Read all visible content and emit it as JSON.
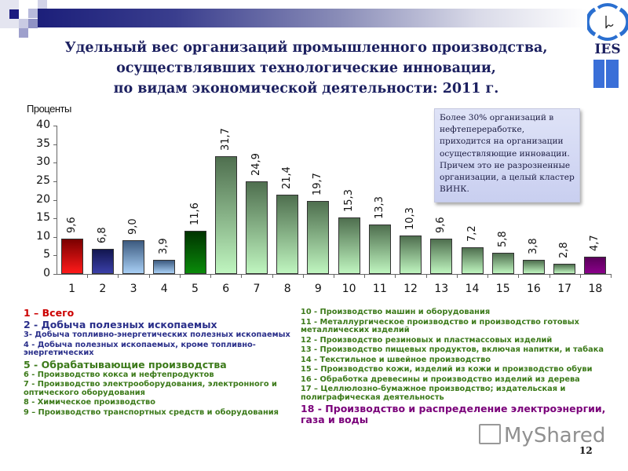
{
  "slide": {
    "title_lines": [
      "Удельный вес организаций промышленного производства,",
      "осуществлявших технологические инновации,",
      "по видам экономической деятельности: 2011 г."
    ],
    "logo_text": "IES",
    "page_number": "12",
    "watermark": "MyShared",
    "note": "Более 30% организаций в нефтепереработке, приходится на организации осуществляющие инновации. Причем это не разрозненные организации, а целый кластер ВИНК."
  },
  "colors": {
    "title": "#1c2060",
    "red": "#d40000",
    "navy": "#1e2270",
    "purple": "#7a007a",
    "legend_blue": "#2a2f8a",
    "legend_green": "#3c7a1a",
    "legend_red": "#cc0000"
  },
  "chart_data": {
    "type": "bar",
    "title": "Удельный вес организаций промышленного производства, осуществлявших технологические инновации, по видам экономической деятельности: 2011 г.",
    "xlabel": "",
    "ylabel": "Проценты",
    "ylim": [
      0,
      40
    ],
    "yticks": [
      "0",
      "5",
      "10",
      "15",
      "20",
      "25",
      "30",
      "35",
      "40"
    ],
    "grid": false,
    "legend_position": "below",
    "categories": [
      "1",
      "2",
      "3",
      "4",
      "5",
      "6",
      "7",
      "8",
      "9",
      "10",
      "11",
      "12",
      "13",
      "14",
      "15",
      "16",
      "17",
      "18"
    ],
    "values": [
      9.6,
      6.8,
      9.0,
      3.9,
      11.6,
      31.7,
      24.9,
      21.4,
      19.7,
      15.3,
      13.3,
      10.3,
      9.6,
      7.2,
      5.8,
      3.8,
      2.8,
      4.7
    ],
    "value_labels": [
      "9,6",
      "6,8",
      "9,0",
      "3,9",
      "11,6",
      "31,7",
      "24,9",
      "21,4",
      "19,7",
      "15,3",
      "13,3",
      "10,3",
      "9,6",
      "7,2",
      "5,8",
      "3,8",
      "2,8",
      "4,7"
    ],
    "bar_styles": [
      "red",
      "navy",
      "lightblue",
      "lightblue",
      "darkgreen",
      "green",
      "green",
      "green",
      "green",
      "green",
      "green",
      "green",
      "green",
      "green",
      "green",
      "green",
      "green",
      "purple"
    ]
  },
  "legend": {
    "left": [
      {
        "text": "1 – Всего",
        "size": "big",
        "color": "red"
      },
      {
        "text": "2 - Добыча полезных ископаемых",
        "size": "big",
        "color": "blue"
      },
      {
        "text": "3- Добыча топливно-энергетических полезных ископаемых",
        "size": "small",
        "color": "blue"
      },
      {
        "text": "4 - Добыча полезных ископаемых, кроме топливно-энергетических",
        "size": "small",
        "color": "blue"
      },
      {
        "text": "5 - Обрабатывающие производства",
        "size": "big",
        "color": "green"
      },
      {
        "text": "6 - Производство кокса и нефтепродуктов",
        "size": "small",
        "color": "green"
      },
      {
        "text": "7 - Производство электрооборудования, электронного и оптического оборудования",
        "size": "small",
        "color": "green"
      },
      {
        "text": "8 - Химическое производство",
        "size": "small",
        "color": "green"
      },
      {
        "text": "9 – Производство транспортных средств и оборудования",
        "size": "small",
        "color": "green"
      }
    ],
    "right": [
      {
        "text": "10 - Производство машин и оборудования",
        "size": "small",
        "color": "green"
      },
      {
        "text": "11 - Металлургическое производство и производство готовых металлических изделий",
        "size": "small",
        "color": "green"
      },
      {
        "text": "12 - Производство резиновых и пластмассовых изделий",
        "size": "small",
        "color": "green"
      },
      {
        "text": "13 - Производство пищевых продуктов, включая напитки, и табака",
        "size": "small",
        "color": "green"
      },
      {
        "text": "14 - Текстильное и швейное производство",
        "size": "small",
        "color": "green"
      },
      {
        "text": "15 – Производство кожи, изделий из кожи и производство обуви",
        "size": "small",
        "color": "green"
      },
      {
        "text": "16 - Обработка древесины и производство изделий из дерева",
        "size": "small",
        "color": "green"
      },
      {
        "text": "17 – Целлюлозно-бумажное производство; издательская и полиграфическая деятельность",
        "size": "small",
        "color": "green"
      },
      {
        "text": "18 - Производство и распределение электроэнергии, газа и воды",
        "size": "big",
        "color": "purple"
      }
    ]
  }
}
